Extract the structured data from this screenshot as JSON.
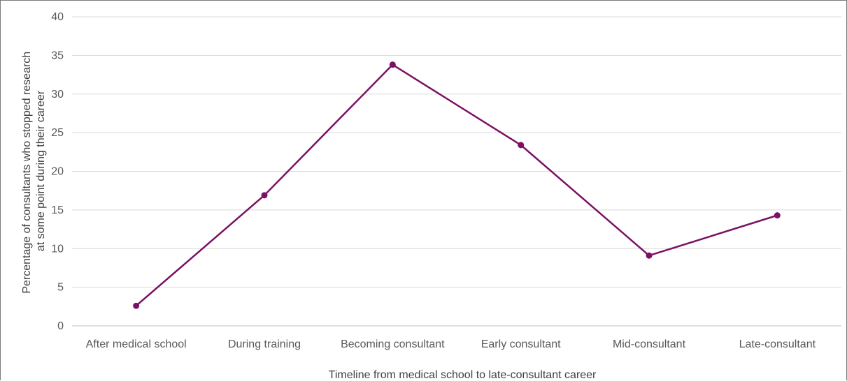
{
  "chart_data": {
    "type": "line",
    "title": "",
    "xlabel": "Timeline from medical school to late-consultant career",
    "ylabel_lines": [
      "Percentage of consultants who stopped research",
      "at some point during their career"
    ],
    "categories": [
      "After medical school",
      "During training",
      "Becoming consultant",
      "Early consultant",
      "Mid-consultant",
      "Late-consultant"
    ],
    "series": [
      {
        "values": [
          2.6,
          16.9,
          33.8,
          23.4,
          9.1,
          14.3
        ]
      }
    ],
    "ylim": [
      0,
      40
    ],
    "yticks": [
      "0",
      "5",
      "10",
      "15",
      "20",
      "25",
      "30",
      "35",
      "40"
    ],
    "grid": true,
    "legend": "none",
    "colors": {
      "series": "#7b1164",
      "grid": "#d9d9d9",
      "axis": "#bfbfbf"
    }
  }
}
